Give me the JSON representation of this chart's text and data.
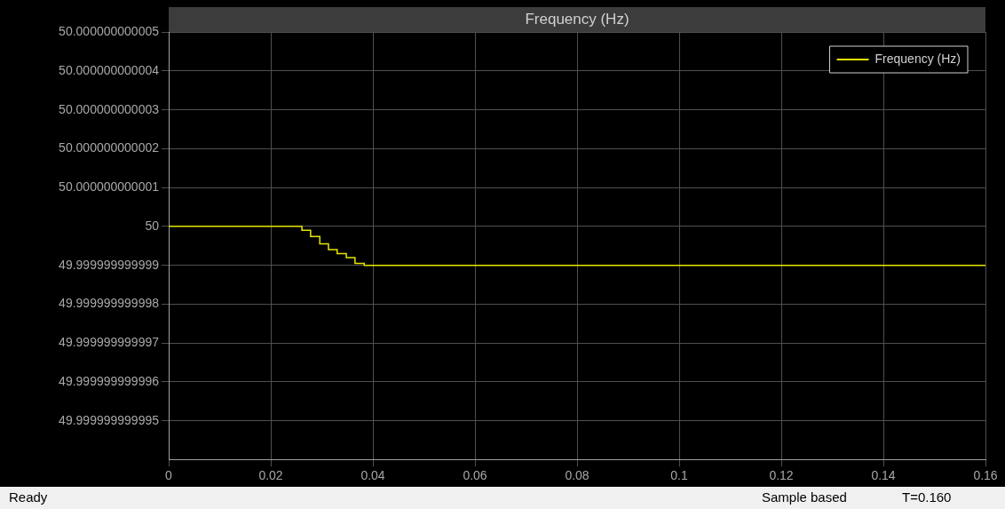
{
  "chart_data": {
    "type": "step",
    "title": "Frequency (Hz)",
    "series": [
      {
        "name": "Frequency (Hz)",
        "color": "#e6e600",
        "x": [
          0,
          0.025,
          0.0261,
          0.0278,
          0.0296,
          0.0313,
          0.033,
          0.0348,
          0.0365,
          0.0383,
          0.16
        ],
        "values": [
          50,
          50,
          49.9999999999999,
          49.99999999999974,
          49.99999999999955,
          49.9999999999994,
          49.9999999999993,
          49.9999999999992,
          49.99999999999905,
          49.999999999999,
          49.999999999999
        ]
      }
    ],
    "xlim": [
      0,
      0.16
    ],
    "xticks": [
      0,
      0.02,
      0.04,
      0.06,
      0.08,
      0.1,
      0.12,
      0.14,
      0.16
    ],
    "ylim": [
      49.999999999994,
      50.000000000005
    ],
    "yticks": [
      {
        "value": 49.999999999995,
        "label": "49.999999999995"
      },
      {
        "value": 49.999999999996,
        "label": "49.999999999996"
      },
      {
        "value": 49.999999999997,
        "label": "49.999999999997"
      },
      {
        "value": 49.999999999998,
        "label": "49.999999999998"
      },
      {
        "value": 49.999999999999,
        "label": "49.999999999999"
      },
      50,
      {
        "value": 50.000000000001,
        "label": "50.000000000001"
      },
      {
        "value": 50.000000000002,
        "label": "50.000000000002"
      },
      {
        "value": 50.000000000003,
        "label": "50.000000000003"
      },
      {
        "value": 50.000000000004,
        "label": "50.000000000004"
      },
      {
        "value": 50.000000000005,
        "label": "50.000000000005"
      }
    ],
    "grid": true,
    "legend": "top right",
    "annotations": [
      "Ready",
      "Sample based",
      "T=0.160"
    ]
  }
}
